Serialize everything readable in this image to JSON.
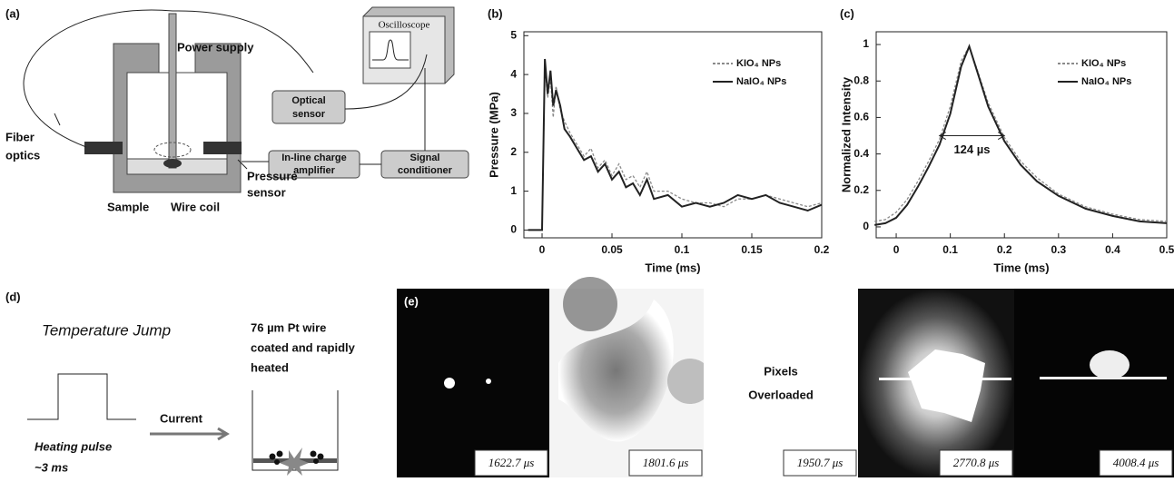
{
  "panel_a": {
    "label": "(a)",
    "power_supply": "Power supply",
    "oscilloscope": "Oscilloscope",
    "optical_sensor": [
      "Optical",
      "sensor"
    ],
    "amplifier": [
      "In-line charge",
      "amplifier"
    ],
    "conditioner": [
      "Signal",
      "conditioner"
    ],
    "fiber_optics": [
      "Fiber",
      "optics"
    ],
    "pressure_sensor": [
      "Pressure",
      "sensor"
    ],
    "sample": "Sample",
    "wire_coil": "Wire coil"
  },
  "chart_data": [
    {
      "type": "line",
      "label": "(b)",
      "xlabel": "Time (ms)",
      "ylabel": "Pressure (MPa)",
      "legend": "upper right",
      "x": [
        -0.01,
        0,
        0.002,
        0.004,
        0.006,
        0.008,
        0.01,
        0.013,
        0.016,
        0.02,
        0.025,
        0.03,
        0.035,
        0.04,
        0.045,
        0.05,
        0.055,
        0.06,
        0.065,
        0.07,
        0.075,
        0.08,
        0.09,
        0.1,
        0.11,
        0.12,
        0.13,
        0.14,
        0.15,
        0.16,
        0.17,
        0.18,
        0.19,
        0.2
      ],
      "series": [
        {
          "name": "KIO₄ NPs",
          "color": "#8a8a8a",
          "dash": true,
          "values": [
            0,
            0,
            4.2,
            3.4,
            3.9,
            2.9,
            3.7,
            3.1,
            2.8,
            2.5,
            2.2,
            1.9,
            2.1,
            1.6,
            1.8,
            1.4,
            1.7,
            1.3,
            1.4,
            1.1,
            1.5,
            1,
            1,
            0.8,
            0.7,
            0.7,
            0.6,
            0.8,
            0.8,
            0.9,
            0.8,
            0.7,
            0.6,
            0.7
          ]
        },
        {
          "name": "NaIO₄ NPs",
          "color": "#222222",
          "dash": false,
          "values": [
            0,
            0,
            4.4,
            3.5,
            4.1,
            3.2,
            3.6,
            3.2,
            2.6,
            2.4,
            2.1,
            1.8,
            1.9,
            1.5,
            1.7,
            1.3,
            1.5,
            1.1,
            1.2,
            0.9,
            1.3,
            0.8,
            0.9,
            0.6,
            0.7,
            0.6,
            0.7,
            0.9,
            0.8,
            0.9,
            0.7,
            0.6,
            0.5,
            0.65
          ]
        }
      ],
      "xlim": [
        -0.013,
        0.2
      ],
      "ylim": [
        -0.2,
        5.1
      ],
      "xticks": [
        0,
        0.05,
        0.1,
        0.15,
        0.2
      ],
      "yticks": [
        0,
        1,
        2,
        3,
        4,
        5
      ]
    },
    {
      "type": "line",
      "label": "(c)",
      "xlabel": "Time (ms)",
      "ylabel": "Normalized Intensity",
      "legend": "upper right",
      "x": [
        -0.04,
        -0.02,
        0,
        0.02,
        0.04,
        0.06,
        0.08,
        0.1,
        0.12,
        0.135,
        0.15,
        0.17,
        0.2,
        0.23,
        0.26,
        0.3,
        0.35,
        0.4,
        0.45,
        0.5
      ],
      "series": [
        {
          "name": "KIO₄ NPs",
          "color": "#8a8a8a",
          "dash": true,
          "values": [
            0.03,
            0.04,
            0.08,
            0.15,
            0.25,
            0.36,
            0.48,
            0.66,
            0.91,
            0.99,
            0.86,
            0.68,
            0.49,
            0.36,
            0.27,
            0.18,
            0.11,
            0.07,
            0.04,
            0.03
          ]
        },
        {
          "name": "NaIO₄ NPs",
          "color": "#222222",
          "dash": false,
          "values": [
            0.01,
            0.02,
            0.05,
            0.12,
            0.22,
            0.33,
            0.45,
            0.62,
            0.88,
            0.99,
            0.85,
            0.66,
            0.47,
            0.34,
            0.25,
            0.17,
            0.1,
            0.06,
            0.03,
            0.02
          ]
        }
      ],
      "annotations": [
        {
          "text": "124 µs",
          "x0": 0.08,
          "x1": 0.2,
          "y": 0.5
        }
      ],
      "xlim": [
        -0.037,
        0.5
      ],
      "ylim": [
        -0.06,
        1.07
      ],
      "xticks": [
        0,
        0.1,
        0.2,
        0.3,
        0.4,
        0.5
      ],
      "yticks": [
        0,
        0.2,
        0.4,
        0.6,
        0.8,
        1
      ]
    }
  ],
  "panel_d": {
    "label": "(d)",
    "title": "Temperature Jump",
    "current": "Current",
    "pulse": [
      "Heating pulse",
      "~3 ms"
    ],
    "wire": [
      "76 µm Pt wire",
      "coated and rapidly",
      "heated"
    ]
  },
  "panel_e": {
    "label": "(e)",
    "overload": [
      "Pixels",
      "Overloaded"
    ],
    "frames": [
      "1622.7 μs",
      "1801.6 μs",
      "1950.7 μs",
      "2770.8 μs",
      "4008.4 μs"
    ]
  }
}
